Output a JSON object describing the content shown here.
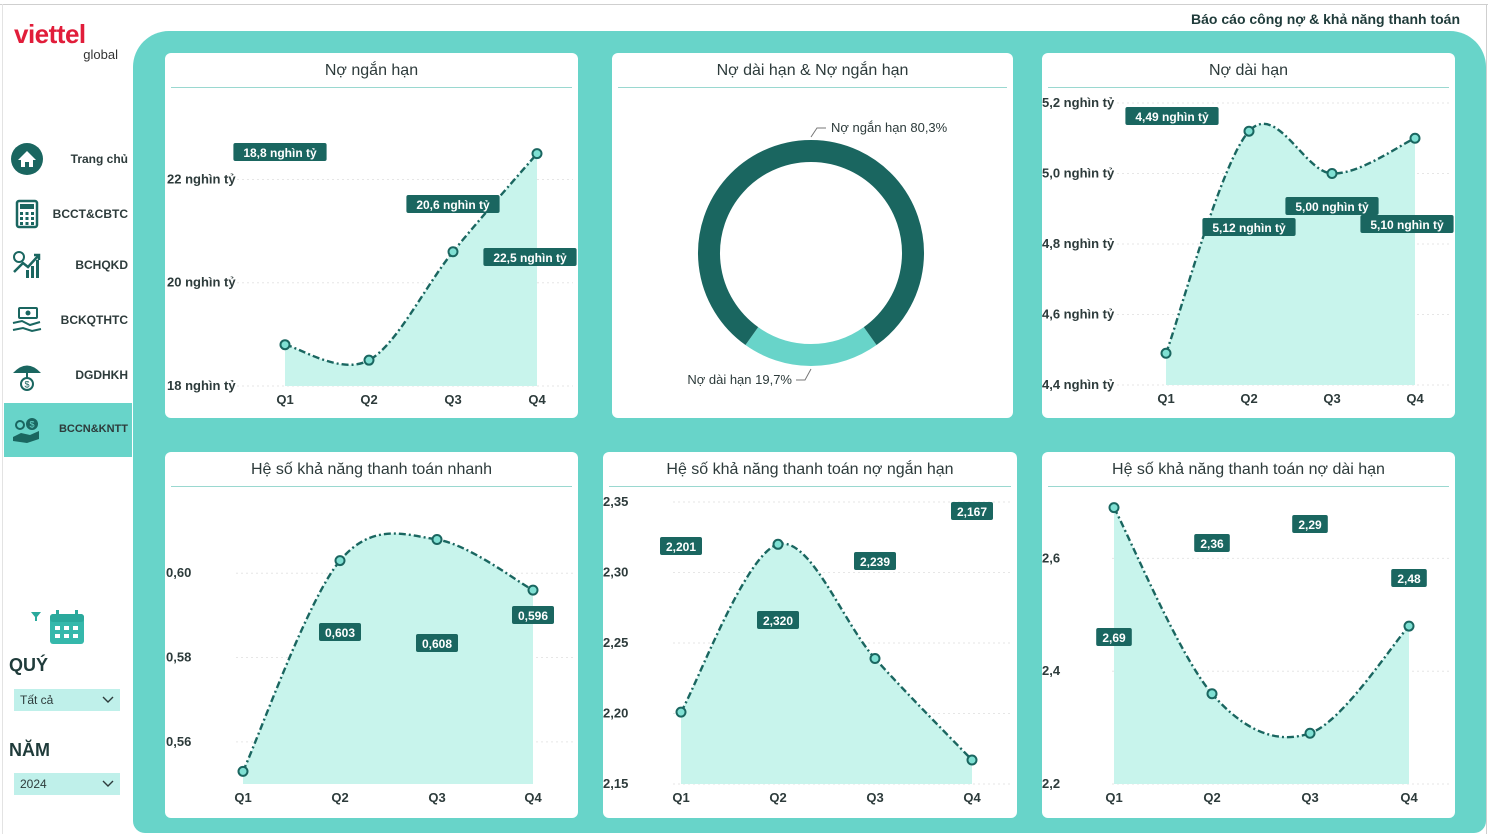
{
  "brand": {
    "name": "viettel",
    "sub": "global"
  },
  "report_title": "Báo cáo công nợ & khả năng thanh toán",
  "nav": [
    {
      "label": "Trang chủ",
      "icon": "home-icon"
    },
    {
      "label": "BCCT&CBTC",
      "icon": "calculator-icon"
    },
    {
      "label": "BCHQKD",
      "icon": "growth-chart-icon"
    },
    {
      "label": "BCKQTHTC",
      "icon": "handshake-money-icon"
    },
    {
      "label": "DGDHKH",
      "icon": "umbrella-money-icon"
    },
    {
      "label": "BCCN&KNTT",
      "icon": "hand-coins-icon",
      "active": true
    }
  ],
  "filters": {
    "quarter": {
      "label": "QUÝ",
      "value": "Tất cả"
    },
    "year": {
      "label": "NĂM",
      "value": "2024"
    }
  },
  "colors": {
    "teal_bg": "#68d4c9",
    "dark": "#1a6660",
    "area": "#c8f4ec",
    "label_bg": "#1a6660"
  },
  "chart_data": [
    {
      "id": "short_debt",
      "type": "area",
      "title": "Nợ ngắn hạn",
      "categories": [
        "Q1",
        "Q2",
        "Q3",
        "Q4"
      ],
      "values": [
        18.8,
        18.5,
        20.6,
        22.5
      ],
      "data_labels": [
        "18,8 nghìn tỷ",
        "",
        "20,6 nghìn tỷ",
        "22,5 nghìn tỷ"
      ],
      "yticks": [
        18,
        20,
        22
      ],
      "ytick_labels": [
        "18 nghìn tỷ",
        "20 nghìn tỷ",
        "22 nghìn tỷ"
      ],
      "ylim": [
        18,
        22.9
      ]
    },
    {
      "id": "debt_mix",
      "type": "pie",
      "title": "Nợ dài hạn & Nợ ngắn hạn",
      "slices": [
        {
          "name": "Nợ ngắn hạn",
          "value": 80.3,
          "label": "Nợ ngắn hạn 80,3%",
          "color": "#1a6660"
        },
        {
          "name": "Nợ dài hạn",
          "value": 19.7,
          "label": "Nợ dài hạn 19,7%",
          "color": "#68d4c9"
        }
      ]
    },
    {
      "id": "long_debt",
      "type": "area",
      "title": "Nợ dài hạn",
      "categories": [
        "Q1",
        "Q2",
        "Q3",
        "Q4"
      ],
      "values": [
        4.49,
        5.12,
        5.0,
        5.1
      ],
      "data_labels": [
        "4,49 nghìn tỷ",
        "5,12 nghìn tỷ",
        "5,00 nghìn tỷ",
        "5,10 nghìn tỷ"
      ],
      "yticks": [
        4.4,
        4.6,
        4.8,
        5.0,
        5.2
      ],
      "ytick_labels": [
        "4,4 nghìn tỷ",
        "4,6 nghìn tỷ",
        "4,8 nghìn tỷ",
        "5,0 nghìn tỷ",
        "5,2 nghìn tỷ"
      ],
      "ylim": [
        4.4,
        5.2
      ]
    },
    {
      "id": "quick_ratio",
      "type": "area",
      "title": "Hệ số khả năng thanh toán nhanh",
      "categories": [
        "Q1",
        "Q2",
        "Q3",
        "Q4"
      ],
      "values": [
        0.553,
        0.603,
        0.608,
        0.596
      ],
      "data_labels": [
        "",
        "0,603",
        "0,608",
        "0,596"
      ],
      "yticks": [
        0.56,
        0.58,
        0.6
      ],
      "ytick_labels": [
        "0,56",
        "0,58",
        "0,60"
      ],
      "ylim": [
        0.55,
        0.615
      ]
    },
    {
      "id": "current_ratio",
      "type": "area",
      "title": "Hệ số khả năng thanh toán nợ ngắn hạn",
      "categories": [
        "Q1",
        "Q2",
        "Q3",
        "Q4"
      ],
      "values": [
        2.201,
        2.32,
        2.239,
        2.167
      ],
      "data_labels": [
        "2,201",
        "2,320",
        "2,239",
        "2,167"
      ],
      "yticks": [
        2.15,
        2.2,
        2.25,
        2.3,
        2.35
      ],
      "ytick_labels": [
        "2,15",
        "2,20",
        "2,25",
        "2,30",
        "2,35"
      ],
      "ylim": [
        2.15,
        2.35
      ]
    },
    {
      "id": "long_ratio",
      "type": "area",
      "title": "Hệ số khả năng thanh toán nợ dài hạn",
      "categories": [
        "Q1",
        "Q2",
        "Q3",
        "Q4"
      ],
      "values": [
        2.69,
        2.36,
        2.29,
        2.48
      ],
      "data_labels": [
        "2,69",
        "2,36",
        "2,29",
        "2,48"
      ],
      "yticks": [
        2.2,
        2.4,
        2.6
      ],
      "ytick_labels": [
        "2,2",
        "2,4",
        "2,6"
      ],
      "ylim": [
        2.2,
        2.7
      ]
    }
  ]
}
